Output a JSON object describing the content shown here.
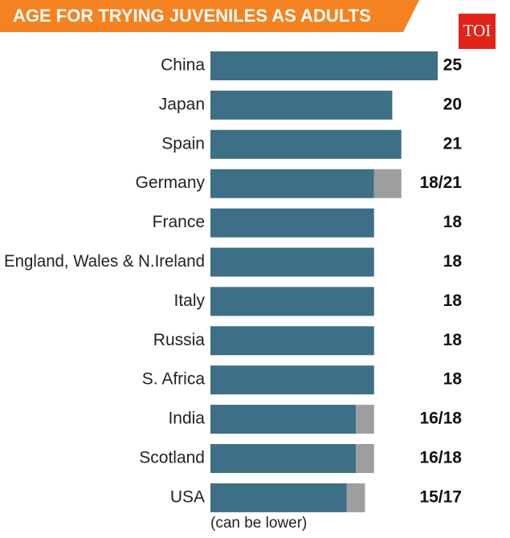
{
  "chart_data": {
    "type": "bar",
    "orientation": "horizontal",
    "title": "AGE FOR TRYING JUVENILES AS ADULTS",
    "logo": "TOI",
    "annotation": "(can be lower)",
    "categories": [
      "China",
      "Japan",
      "Spain",
      "Germany",
      "France",
      "England, Wales & N.Ireland",
      "Italy",
      "Russia",
      "S. Africa",
      "India",
      "Scotland",
      "USA"
    ],
    "series": [
      {
        "color": "#3d6f86",
        "values": [
          25,
          20,
          21,
          18,
          18,
          18,
          18,
          18,
          18,
          16,
          16,
          15
        ],
        "value_labels": [
          "25",
          "20",
          "21",
          "18/21",
          "18",
          "18",
          "18",
          "18",
          "18",
          "16/18",
          "16/18",
          "15/17"
        ]
      },
      {
        "color": "#9c9ea0",
        "values": [
          null,
          null,
          null,
          3,
          null,
          null,
          null,
          null,
          null,
          2,
          2,
          2
        ]
      }
    ],
    "xlim": [
      0,
      25
    ]
  }
}
